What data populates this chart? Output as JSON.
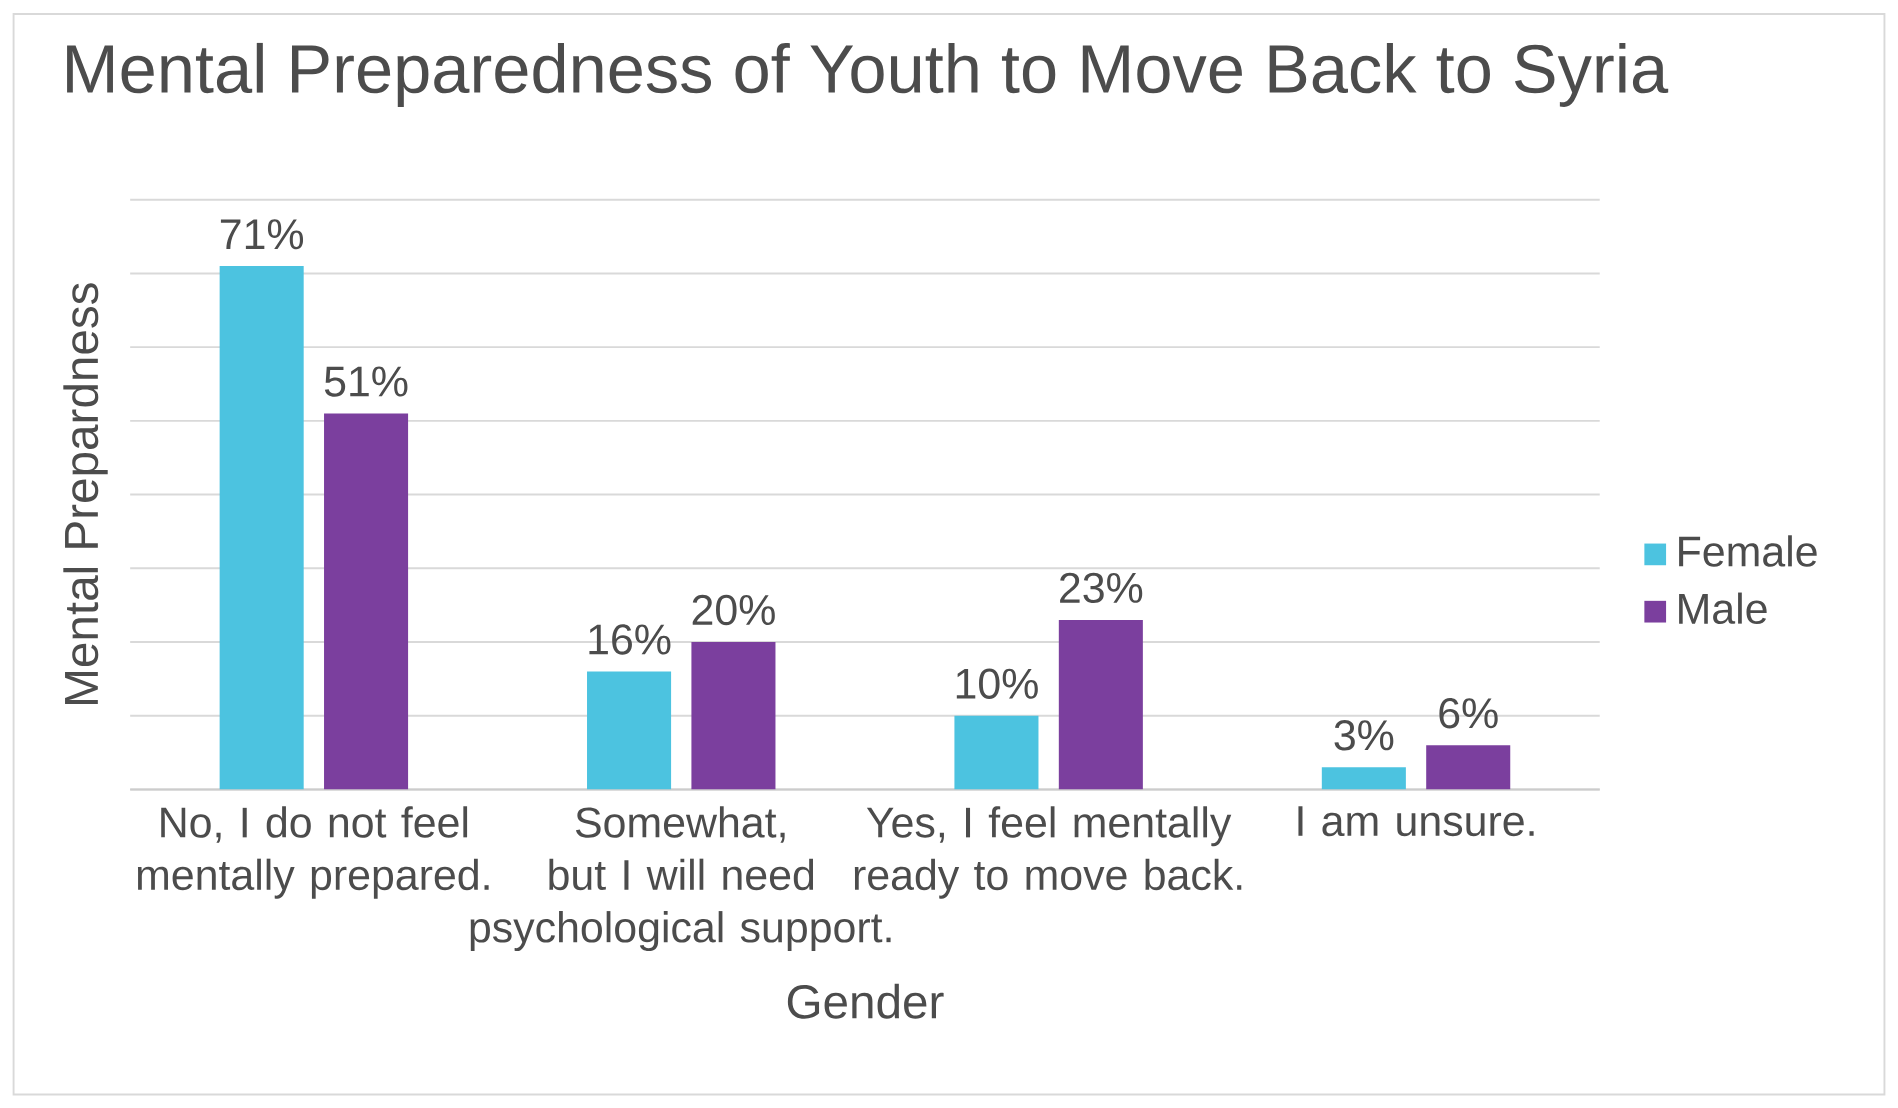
{
  "chart_data": {
    "type": "bar",
    "title": "Mental Preparedness  of Youth to Move Back to Syria",
    "xlabel": "Gender",
    "ylabel": "Mental Prepardness",
    "categories": [
      "No, I do not feel mentally prepared.",
      "Somewhat, but I will need psychological support.",
      "Yes, I feel mentally ready to move back.",
      "I am unsure."
    ],
    "series": [
      {
        "name": "Female",
        "color": "#4cc3e0",
        "values": [
          71,
          16,
          10,
          3
        ],
        "value_labels": [
          "71%",
          "16%",
          "10%",
          "3%"
        ]
      },
      {
        "name": "Male",
        "color": "#7b3f9e",
        "values": [
          51,
          20,
          23,
          6
        ],
        "value_labels": [
          "51%",
          "20%",
          "23%",
          "6%"
        ]
      }
    ],
    "ylim": [
      0,
      80
    ],
    "yticks": [
      {
        "value": 0,
        "label": null
      },
      {
        "value": 10,
        "label": null
      },
      {
        "value": 20,
        "label": null
      },
      {
        "value": 30,
        "label": null
      },
      {
        "value": 40,
        "label": null
      },
      {
        "value": 50,
        "label": null
      },
      {
        "value": 60,
        "label": null
      },
      {
        "value": 70,
        "label": null
      },
      {
        "value": 80,
        "label": null
      }
    ],
    "tick_labels": "x",
    "grid": "y",
    "legend": "right"
  }
}
